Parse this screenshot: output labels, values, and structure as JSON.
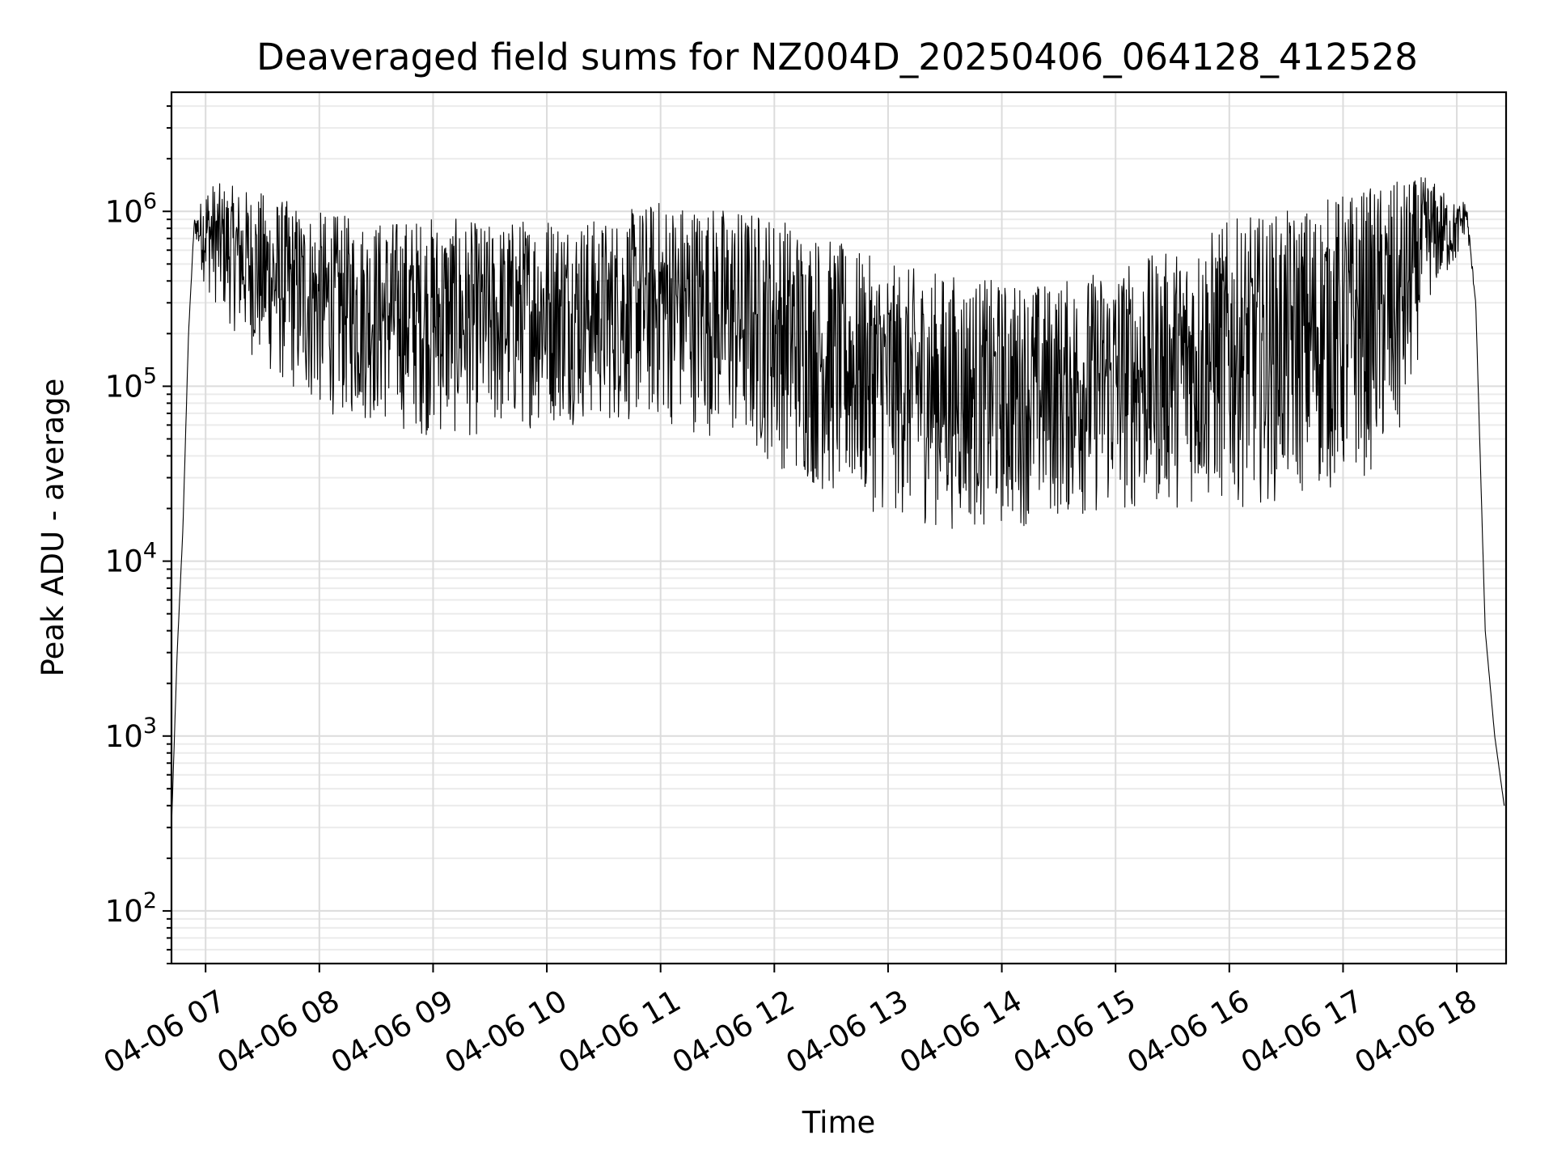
{
  "chart_data": {
    "type": "line",
    "title": "Deaveraged field sums for NZ004D_20250406_064128_412528",
    "xlabel": "Time",
    "ylabel": "Peak ADU - average",
    "yscale": "log",
    "xlim": [
      "04-06 06:42",
      "04-06 18:26"
    ],
    "ylim": [
      50,
      4800000
    ],
    "grid": true,
    "line_color": "#000000",
    "x_ticks": [
      "04-06 07",
      "04-06 08",
      "04-06 09",
      "04-06 10",
      "04-06 11",
      "04-06 12",
      "04-06 13",
      "04-06 14",
      "04-06 15",
      "04-06 16",
      "04-06 17",
      "04-06 18"
    ],
    "y_ticks": [
      {
        "base": "10",
        "exp": "2",
        "value": 100
      },
      {
        "base": "10",
        "exp": "3",
        "value": 1000
      },
      {
        "base": "10",
        "exp": "4",
        "value": 10000
      },
      {
        "base": "10",
        "exp": "5",
        "value": 100000
      },
      {
        "base": "10",
        "exp": "6",
        "value": 1000000
      }
    ],
    "series": [
      {
        "x": [
          "04-06 06:42",
          "04-06 06:45",
          "04-06 06:48",
          "04-06 06:51",
          "04-06 06:54",
          "04-06 06:57",
          "04-06 07:00",
          "04-06 07:30",
          "04-06 08:00",
          "04-06 08:30",
          "04-06 09:00",
          "04-06 09:30",
          "04-06 10:00",
          "04-06 10:30",
          "04-06 11:00",
          "04-06 11:30",
          "04-06 12:00",
          "04-06 12:30",
          "04-06 13:00",
          "04-06 13:30",
          "04-06 14:00",
          "04-06 14:30",
          "04-06 15:00",
          "04-06 15:30",
          "04-06 16:00",
          "04-06 16:30",
          "04-06 17:00",
          "04-06 17:30",
          "04-06 17:45",
          "04-06 18:00",
          "04-06 18:05",
          "04-06 18:10",
          "04-06 18:15",
          "04-06 18:20",
          "04-06 18:25"
        ],
        "upper": [
          300,
          3000,
          15000,
          200000,
          900000,
          1100000,
          1500000,
          1300000,
          1000000,
          900000,
          950000,
          850000,
          1000000,
          900000,
          1200000,
          1100000,
          1000000,
          700000,
          500000,
          450000,
          400000,
          400000,
          500000,
          600000,
          900000,
          1000000,
          1300000,
          1500000,
          1600000,
          1100000,
          1200000,
          300000,
          4000,
          1000,
          400
        ],
        "lower": [
          300,
          3000,
          15000,
          200000,
          800000,
          500000,
          350000,
          120000,
          70000,
          60000,
          50000,
          50000,
          60000,
          60000,
          60000,
          50000,
          35000,
          22000,
          18000,
          15000,
          15000,
          17000,
          18000,
          20000,
          20000,
          22000,
          25000,
          40000,
          300000,
          500000,
          800000,
          300000,
          4000,
          1000,
          400
        ]
      }
    ]
  }
}
